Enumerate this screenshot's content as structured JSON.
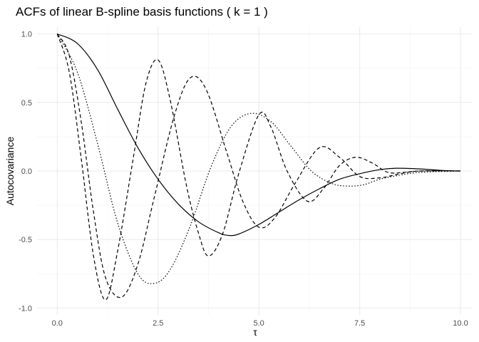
{
  "chart_data": {
    "type": "line",
    "title": "ACFs of linear B-spline basis functions ( k = 1 )",
    "xlabel": "τ",
    "ylabel": "Autocovariance",
    "xlim": [
      -0.5,
      10.3
    ],
    "ylim": [
      -1.05,
      1.05
    ],
    "x_ticks": [
      0.0,
      2.5,
      5.0,
      7.5,
      10.0
    ],
    "x_tick_labels": [
      "0.0",
      "2.5",
      "5.0",
      "7.5",
      "10.0"
    ],
    "x_minor_ticks": [
      1.25,
      3.75,
      6.25,
      8.75
    ],
    "y_ticks": [
      -1.0,
      -0.5,
      0.0,
      0.5,
      1.0
    ],
    "y_tick_labels": [
      "-1.0",
      "-0.5",
      "0.0",
      "0.5",
      "1.0"
    ],
    "y_minor_ticks": [
      -0.75,
      -0.25,
      0.25,
      0.75
    ],
    "grid": true,
    "legend": "none",
    "series": [
      {
        "line_style": "solid",
        "points": [
          [
            0,
            1
          ],
          [
            0.5,
            0.93
          ],
          [
            1.0,
            0.74
          ],
          [
            1.5,
            0.45
          ],
          [
            2.0,
            0.17
          ],
          [
            2.5,
            -0.06
          ],
          [
            3.0,
            -0.24
          ],
          [
            3.5,
            -0.37
          ],
          [
            4.0,
            -0.45
          ],
          [
            4.25,
            -0.47
          ],
          [
            4.5,
            -0.46
          ],
          [
            5.0,
            -0.39
          ],
          [
            5.5,
            -0.3
          ],
          [
            6.0,
            -0.21
          ],
          [
            6.5,
            -0.13
          ],
          [
            7.0,
            -0.06
          ],
          [
            7.5,
            -0.02
          ],
          [
            8.0,
            0.01
          ],
          [
            8.4,
            0.02
          ],
          [
            9.0,
            0.015
          ],
          [
            9.5,
            0.005
          ],
          [
            10.0,
            0
          ]
        ]
      },
      {
        "line_style": "dotted",
        "points": [
          [
            0,
            1
          ],
          [
            0.5,
            0.72
          ],
          [
            1.0,
            0.2
          ],
          [
            1.5,
            -0.38
          ],
          [
            2.0,
            -0.75
          ],
          [
            2.4,
            -0.82
          ],
          [
            2.8,
            -0.72
          ],
          [
            3.3,
            -0.4
          ],
          [
            3.8,
            0.02
          ],
          [
            4.3,
            0.32
          ],
          [
            4.8,
            0.42
          ],
          [
            5.3,
            0.36
          ],
          [
            5.8,
            0.18
          ],
          [
            6.3,
            0.0
          ],
          [
            6.8,
            -0.09
          ],
          [
            7.2,
            -0.11
          ],
          [
            7.6,
            -0.1
          ],
          [
            8.0,
            -0.06
          ],
          [
            8.5,
            -0.03
          ],
          [
            9.0,
            -0.01
          ],
          [
            10.0,
            0
          ]
        ]
      },
      {
        "line_style": "dashed",
        "points": [
          [
            0,
            1
          ],
          [
            0.3,
            0.84
          ],
          [
            0.6,
            0.35
          ],
          [
            0.9,
            -0.3
          ],
          [
            1.2,
            -0.78
          ],
          [
            1.6,
            -0.92
          ],
          [
            2.0,
            -0.68
          ],
          [
            2.4,
            -0.2
          ],
          [
            2.9,
            0.4
          ],
          [
            3.3,
            0.68
          ],
          [
            3.7,
            0.59
          ],
          [
            4.2,
            0.14
          ],
          [
            4.6,
            -0.22
          ],
          [
            5.0,
            -0.41
          ],
          [
            5.4,
            -0.34
          ],
          [
            5.9,
            -0.09
          ],
          [
            6.5,
            0.17
          ],
          [
            7.0,
            0.1
          ],
          [
            7.5,
            -0.04
          ],
          [
            8.0,
            -0.05
          ],
          [
            8.5,
            -0.02
          ],
          [
            9.0,
            0
          ],
          [
            10.0,
            0
          ]
        ]
      },
      {
        "line_style": "dashed",
        "points": [
          [
            0,
            1
          ],
          [
            0.3,
            0.72
          ],
          [
            0.6,
            0.08
          ],
          [
            0.9,
            -0.62
          ],
          [
            1.2,
            -0.94
          ],
          [
            1.5,
            -0.58
          ],
          [
            1.9,
            0.12
          ],
          [
            2.2,
            0.64
          ],
          [
            2.5,
            0.81
          ],
          [
            2.8,
            0.52
          ],
          [
            3.2,
            -0.1
          ],
          [
            3.5,
            -0.45
          ],
          [
            3.75,
            -0.62
          ],
          [
            4.1,
            -0.46
          ],
          [
            4.5,
            -0.02
          ],
          [
            5.0,
            0.41
          ],
          [
            5.3,
            0.32
          ],
          [
            5.7,
            0.0
          ],
          [
            6.2,
            -0.22
          ],
          [
            6.6,
            -0.13
          ],
          [
            7.0,
            0.04
          ],
          [
            7.4,
            0.1
          ],
          [
            7.8,
            0.06
          ],
          [
            8.2,
            -0.01
          ],
          [
            8.6,
            -0.01
          ],
          [
            9.0,
            0
          ],
          [
            10.0,
            0
          ]
        ]
      }
    ]
  }
}
